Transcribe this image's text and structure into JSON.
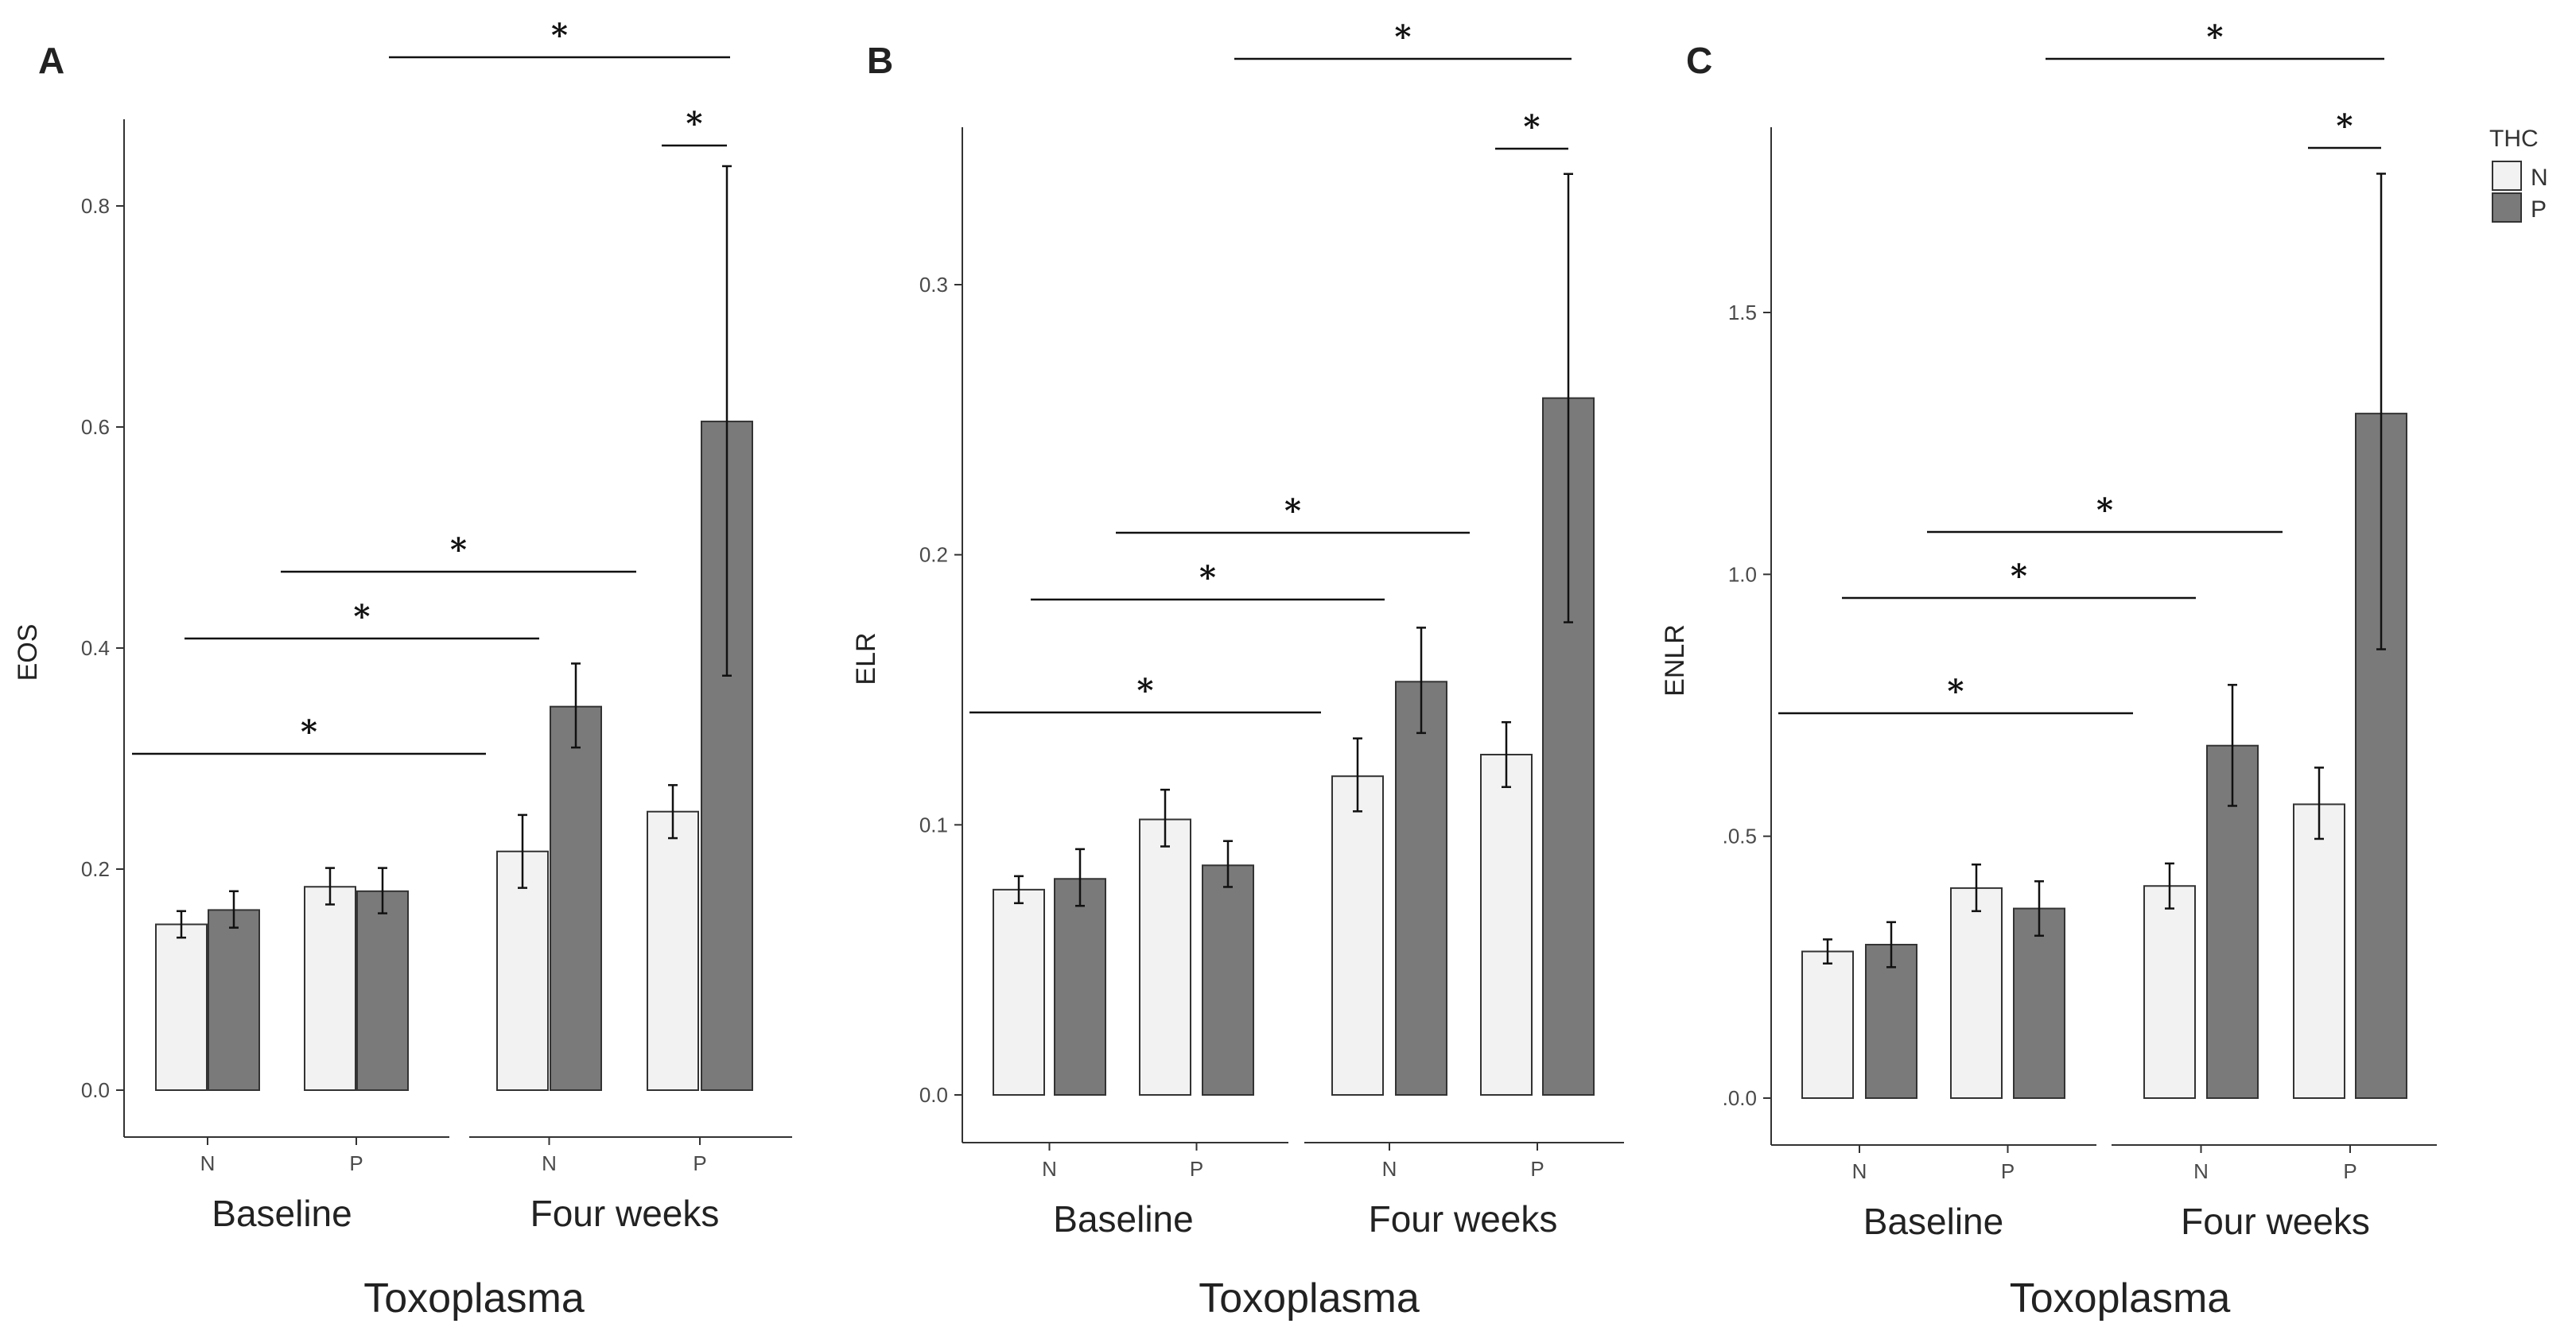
{
  "legend": {
    "title": "THC",
    "items": [
      {
        "label": "N",
        "color": "#f2f2f2"
      },
      {
        "label": "P",
        "color": "#7a7a7a"
      }
    ]
  },
  "colors": {
    "N": "#f2f2f2",
    "P": "#7a7a7a",
    "stroke": "#333333"
  },
  "chart_data": [
    {
      "type": "bar",
      "panel": "A",
      "ylabel": "EOS",
      "xlabel": "Toxoplasma",
      "ylim": [
        0,
        0.88
      ],
      "yticks": [
        "0.0",
        "0.2",
        "0.4",
        "0.6",
        "0.8"
      ],
      "ytick_values": [
        0,
        0.2,
        0.4,
        0.6,
        0.8
      ],
      "groups": [
        "Baseline",
        "Four weeks"
      ],
      "categories": [
        "N",
        "P",
        "N",
        "P"
      ],
      "series": [
        {
          "name": "N",
          "values": [
            0.15,
            0.184,
            0.216,
            0.252
          ],
          "err_low": [
            0.138,
            0.168,
            0.183,
            0.228
          ],
          "err_high": [
            0.162,
            0.201,
            0.249,
            0.276
          ]
        },
        {
          "name": "P",
          "values": [
            0.163,
            0.18,
            0.347,
            0.605
          ],
          "err_low": [
            0.147,
            0.16,
            0.31,
            0.375
          ],
          "err_high": [
            0.18,
            0.201,
            0.386,
            0.836
          ]
        }
      ],
      "significance": [
        {
          "from": [
            0,
            0
          ],
          "to": [
            2,
            0
          ],
          "label": "*"
        },
        {
          "from": [
            0,
            1
          ],
          "to": [
            2,
            1
          ],
          "label": "*"
        },
        {
          "from": [
            1,
            1
          ],
          "to": [
            3,
            0
          ],
          "label": "*"
        },
        {
          "from": [
            1,
            0
          ],
          "to": [
            3,
            1
          ],
          "label": "*",
          "top": true
        },
        {
          "from": [
            3,
            0
          ],
          "to": [
            3,
            1
          ],
          "label": "*",
          "local": true
        }
      ]
    },
    {
      "type": "bar",
      "panel": "B",
      "ylabel": "ELR",
      "xlabel": "Toxoplasma",
      "ylim": [
        0,
        0.36
      ],
      "yticks": [
        "0.0",
        "0.1",
        "0.2",
        "0.3"
      ],
      "ytick_values": [
        0,
        0.1,
        0.2,
        0.3
      ],
      "groups": [
        "Baseline",
        "Four weeks"
      ],
      "categories": [
        "N",
        "P",
        "N",
        "P"
      ],
      "series": [
        {
          "name": "N",
          "values": [
            0.076,
            0.102,
            0.118,
            0.126
          ],
          "err_low": [
            0.071,
            0.092,
            0.105,
            0.114
          ],
          "err_high": [
            0.081,
            0.113,
            0.132,
            0.138
          ]
        },
        {
          "name": "P",
          "values": [
            0.08,
            0.085,
            0.153,
            0.258
          ],
          "err_low": [
            0.07,
            0.077,
            0.134,
            0.175
          ],
          "err_high": [
            0.091,
            0.094,
            0.173,
            0.341
          ]
        }
      ],
      "significance": [
        {
          "from": [
            0,
            0
          ],
          "to": [
            2,
            0
          ],
          "label": "*"
        },
        {
          "from": [
            0,
            1
          ],
          "to": [
            2,
            1
          ],
          "label": "*"
        },
        {
          "from": [
            1,
            1
          ],
          "to": [
            3,
            0
          ],
          "label": "*"
        },
        {
          "from": [
            1,
            0
          ],
          "to": [
            3,
            1
          ],
          "label": "*",
          "top": true
        },
        {
          "from": [
            3,
            0
          ],
          "to": [
            3,
            1
          ],
          "label": "*",
          "local": true
        }
      ]
    },
    {
      "type": "bar",
      "panel": "C",
      "ylabel": "ENLR",
      "xlabel": "Toxoplasma",
      "ylim": [
        0,
        1.88
      ],
      "yticks": [
        ".0.0",
        ".0.5",
        "1.0",
        "1.5"
      ],
      "ytick_values": [
        0,
        0.5,
        1.0,
        1.5
      ],
      "groups": [
        "Baseline",
        "Four weeks"
      ],
      "categories": [
        "N",
        "P",
        "N",
        "P"
      ],
      "series": [
        {
          "name": "N",
          "values": [
            0.28,
            0.401,
            0.405,
            0.561
          ],
          "err_low": [
            0.257,
            0.357,
            0.362,
            0.495
          ],
          "err_high": [
            0.303,
            0.446,
            0.448,
            0.631
          ]
        },
        {
          "name": "P",
          "values": [
            0.293,
            0.362,
            0.673,
            1.307
          ],
          "err_low": [
            0.25,
            0.31,
            0.558,
            0.857
          ],
          "err_high": [
            0.336,
            0.414,
            0.789,
            1.765
          ]
        }
      ],
      "significance": [
        {
          "from": [
            0,
            0
          ],
          "to": [
            2,
            0
          ],
          "label": "*"
        },
        {
          "from": [
            0,
            1
          ],
          "to": [
            2,
            1
          ],
          "label": "*"
        },
        {
          "from": [
            1,
            1
          ],
          "to": [
            3,
            0
          ],
          "label": "*"
        },
        {
          "from": [
            1,
            0
          ],
          "to": [
            3,
            1
          ],
          "label": "*",
          "top": true
        },
        {
          "from": [
            3,
            0
          ],
          "to": [
            3,
            1
          ],
          "label": "*",
          "local": true
        }
      ]
    }
  ]
}
